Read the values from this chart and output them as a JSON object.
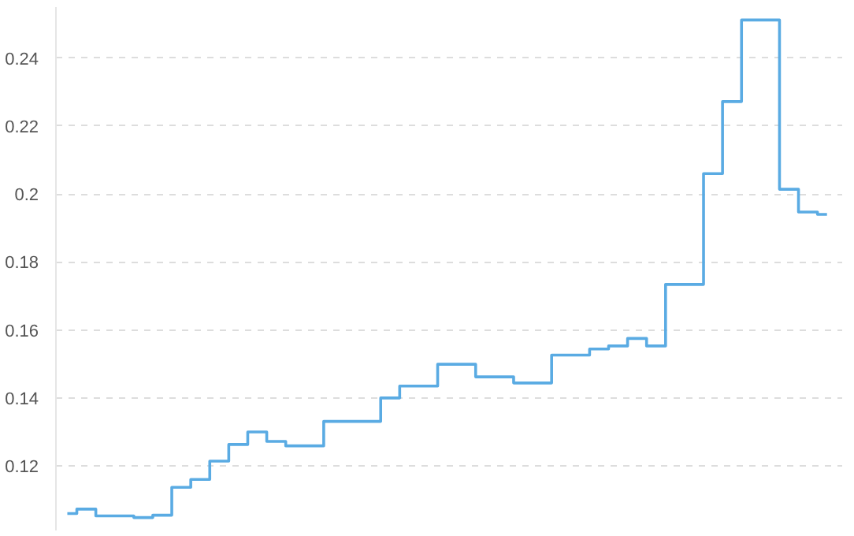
{
  "chart_data": {
    "type": "step",
    "categories": [
      null,
      null,
      null,
      null,
      null,
      null,
      null,
      null,
      null,
      null,
      null,
      null,
      null,
      null,
      null,
      null,
      null,
      null,
      null,
      null,
      null,
      null,
      null,
      null,
      null,
      null,
      null,
      null,
      null,
      null,
      null,
      null,
      null,
      null,
      null,
      null,
      null,
      null,
      null,
      null,
      null
    ],
    "series": [
      {
        "color": "#5aabe3",
        "values": [
          0.106,
          0.1073,
          0.1053,
          0.1053,
          0.1048,
          0.1055,
          0.1137,
          0.116,
          0.1214,
          0.1263,
          0.13,
          0.1272,
          0.1259,
          0.1259,
          0.1331,
          0.1331,
          0.1331,
          0.14,
          0.1435,
          0.1435,
          0.1499,
          0.1499,
          0.1462,
          0.1462,
          0.1444,
          0.1444,
          0.1526,
          0.1526,
          0.1544,
          0.1553,
          0.1575,
          0.1553,
          0.1734,
          0.1734,
          0.206,
          0.2272,
          0.2512,
          0.2512,
          0.2014,
          0.1947,
          0.194
        ]
      }
    ],
    "ylim": [
      0.101,
      0.255
    ],
    "yticks": [
      0.12,
      0.14,
      0.16,
      0.18,
      0.2,
      0.22,
      0.24
    ],
    "grid": "y",
    "line_style": "solid",
    "marker": "none"
  }
}
